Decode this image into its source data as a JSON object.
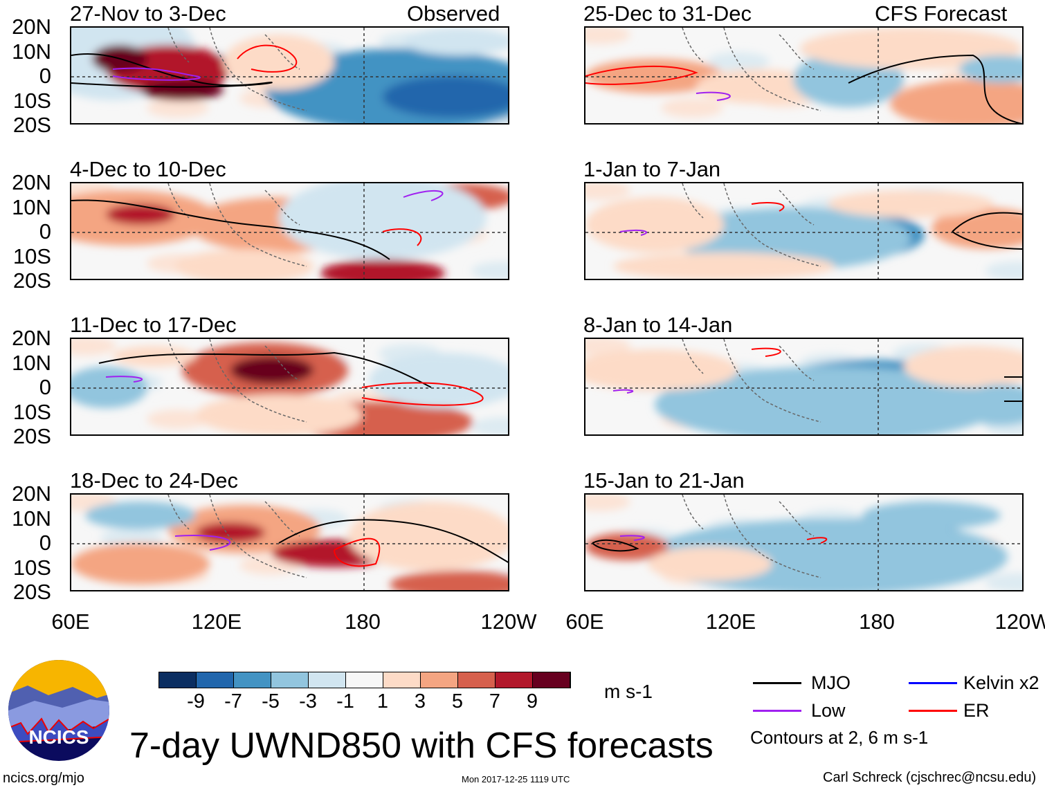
{
  "panels": [
    {
      "title": "27-Nov to 3-Dec",
      "tag": "Observed",
      "column": "observed"
    },
    {
      "title": "4-Dec to 10-Dec",
      "column": "observed"
    },
    {
      "title": "11-Dec to 17-Dec",
      "column": "observed"
    },
    {
      "title": "18-Dec to 24-Dec",
      "column": "observed"
    },
    {
      "title": "25-Dec to 31-Dec",
      "tag": "CFS Forecast",
      "column": "forecast"
    },
    {
      "title": "1-Jan to 7-Jan",
      "column": "forecast"
    },
    {
      "title": "8-Jan to 14-Jan",
      "column": "forecast"
    },
    {
      "title": "15-Jan to 21-Jan",
      "column": "forecast"
    }
  ],
  "lat_labels": [
    "20N",
    "10N",
    "0",
    "10S",
    "20S"
  ],
  "lon_labels": [
    "60E",
    "120E",
    "180",
    "120W"
  ],
  "colorbar": {
    "labels": [
      "-9",
      "-7",
      "-5",
      "-3",
      "-1",
      "1",
      "3",
      "5",
      "7",
      "9"
    ],
    "colors": [
      "#0b2e61",
      "#2166ac",
      "#4393c3",
      "#92c5de",
      "#d1e5f0",
      "#f7f7f7",
      "#fddbc7",
      "#f4a582",
      "#d6604d",
      "#b2182b",
      "#67001f"
    ],
    "units": "m s-1"
  },
  "legend": {
    "items": [
      {
        "label": "MJO",
        "color": "#000000"
      },
      {
        "label": "Kelvin x2",
        "color": "#0000ff"
      },
      {
        "label": "Low",
        "color": "#a020f0"
      },
      {
        "label": "ER",
        "color": "#ff0000"
      }
    ],
    "note": "Contours at 2, 6 m s-1"
  },
  "title": "7-day UWND850 with CFS forecasts",
  "logo_text": "NCICS",
  "url": "ncics.org/mjo",
  "timestamp": "Mon 2017-12-25 1119 UTC",
  "credit": "Carl Schreck (cjschrec@ncsu.edu)"
}
